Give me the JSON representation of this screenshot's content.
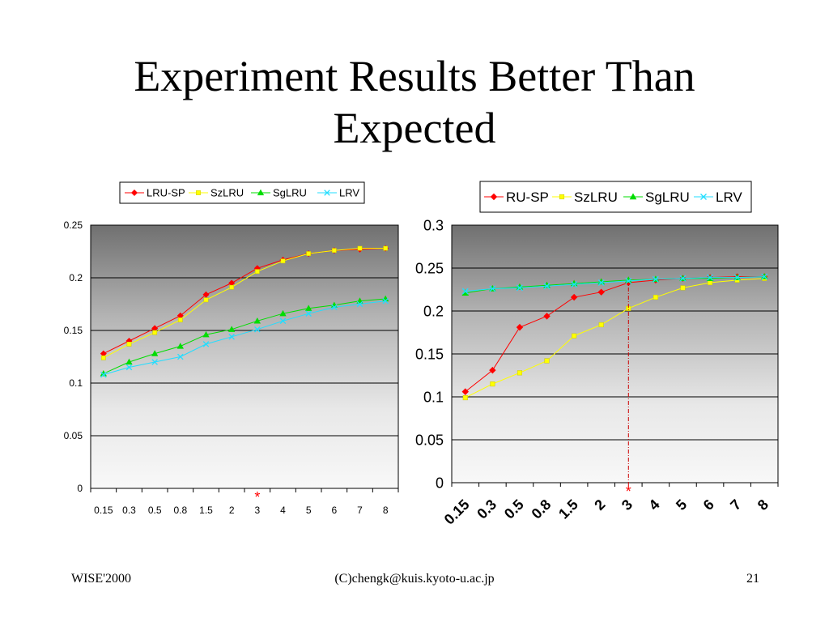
{
  "slide": {
    "title_line1": "Experiment Results Better Than",
    "title_line2": "Expected",
    "footer_left": "WISE'2000",
    "footer_center": "(C)chengk@kuis.kyoto-u.ac.jp",
    "footer_right": "21"
  },
  "colors": {
    "LRU-SP": "#ff0000",
    "SzLRU": "#ffff00",
    "SgLRU": "#00dd00",
    "LRV": "#22ddff",
    "marker_note": "#ff0000"
  },
  "chart_data": [
    {
      "type": "line",
      "categories": [
        "0.15",
        "0.3",
        "0.5",
        "0.8",
        "1.5",
        "2",
        "3",
        "4",
        "5",
        "6",
        "7",
        "8"
      ],
      "ylim": [
        0,
        0.25
      ],
      "yticks": [
        "0",
        "0.05",
        "0.1",
        "0.15",
        "0.2",
        "0.25"
      ],
      "grid": true,
      "legend_position": "top",
      "annotation": "*",
      "annotation_category": "3",
      "series": [
        {
          "name": "LRU-SP",
          "marker": "diamond",
          "values": [
            0.128,
            0.14,
            0.152,
            0.164,
            0.184,
            0.195,
            0.209,
            0.217,
            0.223,
            0.226,
            0.227,
            0.228
          ]
        },
        {
          "name": "SzLRU",
          "marker": "square",
          "values": [
            0.124,
            0.137,
            0.148,
            0.16,
            0.179,
            0.191,
            0.206,
            0.216,
            0.223,
            0.226,
            0.228,
            0.228
          ]
        },
        {
          "name": "SgLRU",
          "marker": "triangle",
          "values": [
            0.109,
            0.12,
            0.128,
            0.135,
            0.146,
            0.151,
            0.159,
            0.166,
            0.171,
            0.174,
            0.178,
            0.18
          ]
        },
        {
          "name": "LRV",
          "marker": "x",
          "values": [
            0.108,
            0.115,
            0.12,
            0.125,
            0.137,
            0.144,
            0.151,
            0.159,
            0.166,
            0.172,
            0.175,
            0.178
          ]
        }
      ]
    },
    {
      "type": "line",
      "categories": [
        "0.15",
        "0.3",
        "0.5",
        "0.8",
        "1.5",
        "2",
        "3",
        "4",
        "5",
        "6",
        "7",
        "8"
      ],
      "ylim": [
        0,
        0.3
      ],
      "yticks": [
        "0",
        "0.05",
        "0.1",
        "0.15",
        "0.2",
        "0.25",
        "0.3"
      ],
      "grid": true,
      "legend_position": "top",
      "annotation": "*",
      "annotation_category": "3",
      "series": [
        {
          "name": "RU-SP",
          "marker": "diamond",
          "values": [
            0.106,
            0.131,
            0.181,
            0.194,
            0.216,
            0.222,
            0.233,
            0.236,
            0.238,
            0.239,
            0.24,
            0.24
          ]
        },
        {
          "name": "SzLRU",
          "marker": "square",
          "values": [
            0.099,
            0.115,
            0.128,
            0.142,
            0.171,
            0.184,
            0.203,
            0.216,
            0.227,
            0.233,
            0.236,
            0.238
          ]
        },
        {
          "name": "SgLRU",
          "marker": "triangle",
          "values": [
            0.221,
            0.226,
            0.228,
            0.23,
            0.232,
            0.234,
            0.236,
            0.237,
            0.238,
            0.238,
            0.239,
            0.24
          ]
        },
        {
          "name": "LRV",
          "marker": "x",
          "values": [
            0.223,
            0.226,
            0.227,
            0.229,
            0.231,
            0.233,
            0.235,
            0.237,
            0.238,
            0.239,
            0.239,
            0.24
          ]
        }
      ]
    }
  ]
}
